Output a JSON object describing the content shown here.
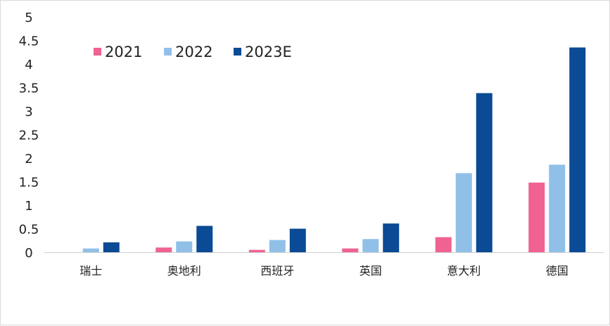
{
  "chart_data": {
    "type": "bar",
    "title": "",
    "xlabel": "",
    "ylabel": "",
    "ylim": [
      0,
      5
    ],
    "yticks": [
      "0",
      "0.5",
      "1",
      "1.5",
      "2",
      "2.5",
      "3",
      "3.5",
      "4",
      "4.5",
      "5"
    ],
    "grid": false,
    "legend_position": "top-left",
    "categories": [
      "瑞士",
      "奥地利",
      "西班牙",
      "英国",
      "意大利",
      "德国"
    ],
    "series": [
      {
        "name": "2021",
        "color": "#F06292",
        "values": [
          0.0,
          0.1,
          0.05,
          0.08,
          0.32,
          1.48
        ]
      },
      {
        "name": "2022",
        "color": "#90C0E8",
        "values": [
          0.08,
          0.23,
          0.26,
          0.28,
          1.68,
          1.86
        ]
      },
      {
        "name": "2023E",
        "color": "#0B4A94",
        "values": [
          0.21,
          0.56,
          0.5,
          0.61,
          3.38,
          4.35
        ]
      }
    ]
  }
}
